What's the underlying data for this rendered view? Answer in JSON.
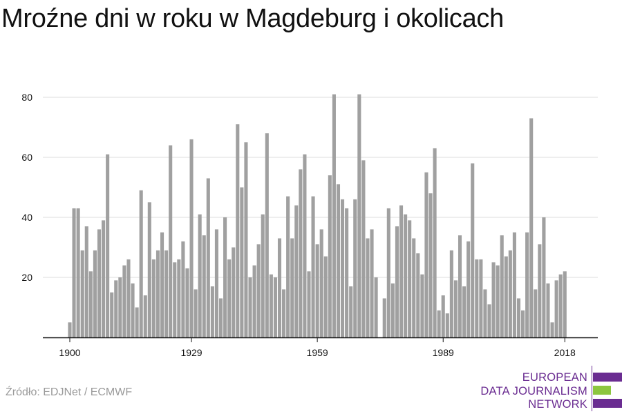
{
  "title": "Mroźne dni w roku w Magdeburg i okolicach",
  "source": "Źródło: EDJNet / ECMWF",
  "logo": {
    "line1": "EUROPEAN",
    "line2": "DATA JOURNALISM",
    "line3": "NETWORK",
    "colors": {
      "purple": "#6a2c91",
      "green": "#8cc63f"
    }
  },
  "chart_data": {
    "type": "bar",
    "xlabel": "",
    "ylabel": "",
    "ylim": [
      0,
      85
    ],
    "yticks": [
      20,
      40,
      60,
      80
    ],
    "xtick_labels": [
      "1900",
      "1929",
      "1959",
      "1989",
      "2018"
    ],
    "grid": true,
    "bar_color": "#a0a0a0",
    "start_year": 1900,
    "values": [
      5,
      43,
      43,
      29,
      37,
      22,
      29,
      36,
      39,
      61,
      15,
      19,
      20,
      24,
      26,
      18,
      10,
      49,
      14,
      45,
      26,
      29,
      35,
      29,
      64,
      25,
      26,
      32,
      23,
      66,
      16,
      41,
      34,
      53,
      17,
      36,
      13,
      40,
      26,
      30,
      71,
      50,
      65,
      20,
      24,
      31,
      41,
      68,
      21,
      20,
      33,
      16,
      47,
      33,
      44,
      56,
      61,
      22,
      47,
      31,
      36,
      27,
      54,
      81,
      51,
      46,
      43,
      17,
      46,
      81,
      59,
      33,
      36,
      20,
      null,
      13,
      43,
      18,
      37,
      44,
      41,
      39,
      33,
      28,
      21,
      55,
      48,
      63,
      9,
      14,
      8,
      29,
      19,
      34,
      17,
      32,
      58,
      26,
      26,
      16,
      11,
      25,
      24,
      34,
      27,
      29,
      35,
      13,
      9,
      35,
      73,
      16,
      31,
      40,
      18,
      5,
      19,
      21,
      22
    ]
  }
}
